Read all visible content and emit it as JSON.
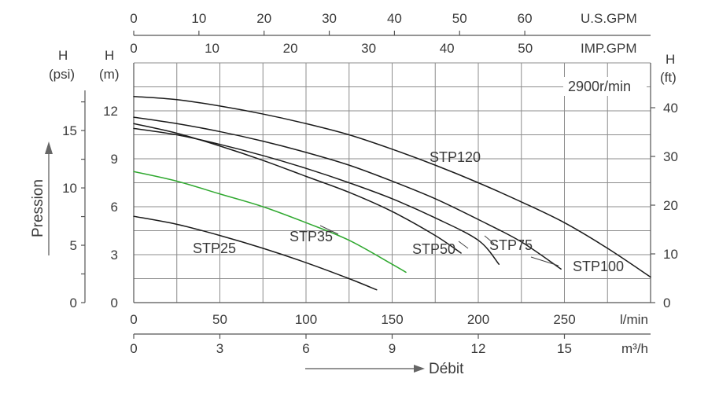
{
  "chart_data": {
    "type": "line",
    "annotation": "2900r/min",
    "axes": {
      "bottom_primary": {
        "unit": "l/min",
        "ticks": [
          0,
          50,
          100,
          150,
          200,
          250
        ],
        "range": [
          0,
          300
        ]
      },
      "bottom_secondary": {
        "unit": "m³/h",
        "ticks": [
          0,
          3,
          6,
          9,
          12,
          15
        ],
        "range": [
          0,
          18
        ]
      },
      "top_upper": {
        "unit": "U.S.GPM",
        "ticks": [
          0,
          10,
          20,
          30,
          40,
          50,
          60
        ],
        "range": [
          0,
          79.3
        ]
      },
      "top_lower": {
        "unit": "IMP.GPM",
        "ticks": [
          0,
          10,
          20,
          30,
          40,
          50
        ],
        "range": [
          0,
          66
        ]
      },
      "left_psi": {
        "unit_top": "H",
        "unit_bottom": "(psi)",
        "ticks": [
          0,
          5,
          10,
          15
        ],
        "range": [
          0,
          20.9
        ]
      },
      "left_m": {
        "unit_top": "H",
        "unit_bottom": "(m)",
        "ticks": [
          0,
          3,
          6,
          9,
          12
        ],
        "range": [
          0,
          15
        ]
      },
      "right_ft": {
        "unit_top": "H",
        "unit_bottom": "(ft)",
        "ticks": [
          0,
          10,
          20,
          30,
          40
        ],
        "range": [
          0,
          49.2
        ]
      }
    },
    "xlabel": "Débit",
    "ylabel": "Pression",
    "grid": true,
    "series": [
      {
        "name": "STP25",
        "color": "#1a1a1a",
        "x": [
          0,
          25,
          50,
          75,
          100,
          125,
          141
        ],
        "y": [
          5.4,
          4.9,
          4.2,
          3.4,
          2.5,
          1.5,
          0.8
        ]
      },
      {
        "name": "STP35",
        "color": "#2fa82f",
        "x": [
          0,
          25,
          50,
          75,
          100,
          125,
          150,
          158
        ],
        "y": [
          8.2,
          7.6,
          6.8,
          6.0,
          5.0,
          3.9,
          2.4,
          1.9
        ]
      },
      {
        "name": "STP50",
        "color": "#1a1a1a",
        "x": [
          0,
          25,
          50,
          75,
          100,
          125,
          150,
          175,
          190
        ],
        "y": [
          11.2,
          10.6,
          9.8,
          8.9,
          7.9,
          6.9,
          5.7,
          4.2,
          3.1
        ]
      },
      {
        "name": "STP75",
        "color": "#1a1a1a",
        "x": [
          0,
          25,
          50,
          75,
          100,
          125,
          150,
          175,
          200,
          212
        ],
        "y": [
          10.9,
          10.5,
          9.9,
          9.2,
          8.4,
          7.5,
          6.5,
          5.3,
          3.9,
          2.4
        ]
      },
      {
        "name": "STP100",
        "color": "#1a1a1a",
        "x": [
          0,
          25,
          50,
          75,
          100,
          125,
          150,
          175,
          200,
          225,
          248
        ],
        "y": [
          11.6,
          11.2,
          10.7,
          10.1,
          9.4,
          8.6,
          7.6,
          6.5,
          5.2,
          3.8,
          2.1
        ]
      },
      {
        "name": "STP120",
        "color": "#1a1a1a",
        "x": [
          0,
          25,
          50,
          75,
          100,
          125,
          150,
          175,
          200,
          225,
          250,
          275,
          300
        ],
        "y": [
          12.9,
          12.7,
          12.3,
          11.8,
          11.2,
          10.5,
          9.6,
          8.6,
          7.5,
          6.3,
          5.0,
          3.4,
          1.6
        ]
      }
    ]
  }
}
